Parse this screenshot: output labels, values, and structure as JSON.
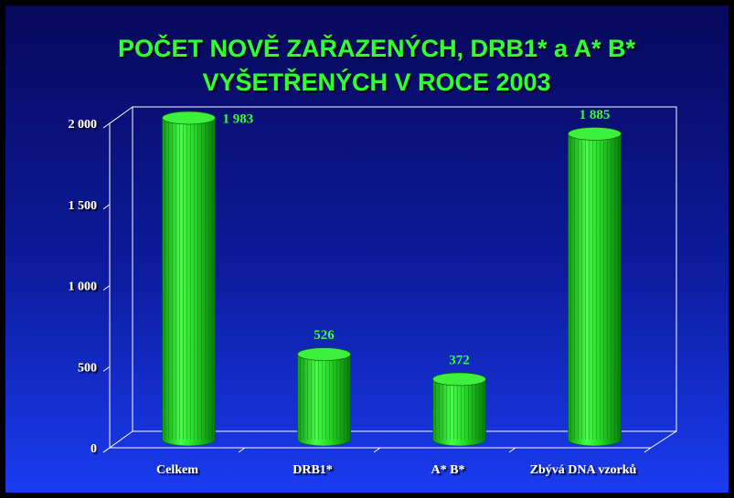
{
  "chart_data": {
    "type": "bar",
    "title": [
      "POČET NOVĚ ZAŘAZENÝCH, DRB1* a A* B*",
      "VYŠETŘENÝCH V ROCE 2003"
    ],
    "categories": [
      "Celkem",
      "DRB1*",
      "A* B*",
      "Zbývá DNA vzorků"
    ],
    "values": [
      1983,
      526,
      372,
      1885
    ],
    "value_labels": [
      "1 983",
      "526",
      "372",
      "1 885"
    ],
    "color": "#22dd22",
    "ylim": [
      0,
      2000
    ],
    "yticks": [
      0,
      500,
      {
        "value": 1000,
        "label": "1 000"
      },
      {
        "value": 1500,
        "label": "1 500"
      },
      {
        "value": 2000,
        "label": "2 000"
      }
    ],
    "grid": false
  }
}
